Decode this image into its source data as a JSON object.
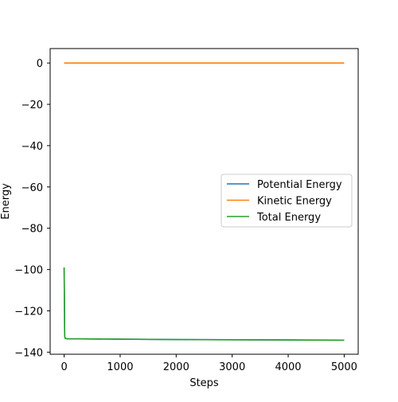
{
  "chart_data": {
    "type": "line",
    "title": "",
    "xlabel": "Steps",
    "ylabel": "Energy",
    "xlim": [
      -250,
      5250
    ],
    "ylim": [
      -141,
      7
    ],
    "xticks": [
      0,
      1000,
      2000,
      3000,
      4000,
      5000
    ],
    "yticks": [
      0,
      -20,
      -40,
      -60,
      -80,
      -100,
      -120,
      -140
    ],
    "grid": false,
    "legend_position": "center-right",
    "series": [
      {
        "name": "Potential Energy",
        "color": "#1f77b4",
        "x": [
          0,
          10,
          20,
          50,
          500,
          1000,
          2000,
          3000,
          4000,
          5000
        ],
        "y": [
          -99,
          -132.5,
          -133.3,
          -133.5,
          -133.6,
          -133.7,
          -133.9,
          -134.0,
          -134.1,
          -134.2
        ]
      },
      {
        "name": "Kinetic Energy",
        "color": "#ff7f0e",
        "x": [
          0,
          1000,
          2000,
          3000,
          4000,
          5000
        ],
        "y": [
          0,
          0,
          0,
          0,
          0,
          0
        ]
      },
      {
        "name": "Total Energy",
        "color": "#2ca02c",
        "x": [
          0,
          10,
          20,
          50,
          500,
          1000,
          2000,
          3000,
          4000,
          5000
        ],
        "y": [
          -99,
          -132.5,
          -133.3,
          -133.5,
          -133.6,
          -133.7,
          -133.9,
          -134.0,
          -134.1,
          -134.2
        ]
      }
    ]
  }
}
